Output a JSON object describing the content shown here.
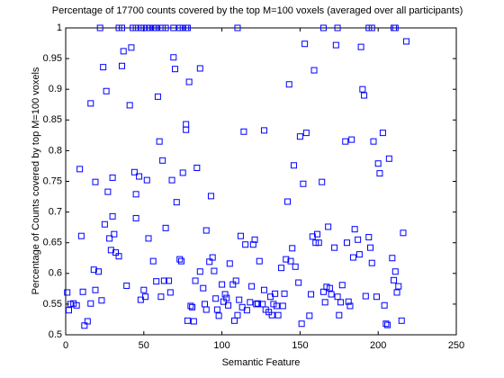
{
  "chart_data": {
    "type": "scatter",
    "title": "Percentage of 17700 counts covered by the top M=100 voxels (averaged over all participants)",
    "x_label": "Semantic Feature",
    "y_label": "Percentage of Counts covered by top M=100 voxels",
    "color": "#0000ff",
    "xlim": [
      0,
      250
    ],
    "xticks": [
      0,
      50,
      100,
      150,
      200,
      250
    ],
    "ylim": [
      0.5,
      1
    ],
    "yticks": [
      0.5,
      0.55,
      0.6,
      0.65,
      0.7,
      0.75,
      0.8,
      0.85,
      0.9,
      0.95,
      1
    ],
    "x": [
      1,
      2,
      3,
      5,
      7,
      9,
      10,
      11,
      12,
      14,
      16,
      16,
      18,
      19,
      19,
      21,
      23,
      24,
      25,
      26,
      27,
      28,
      29,
      30,
      30,
      31,
      32,
      34,
      36,
      37,
      39,
      41,
      42,
      44,
      45,
      45,
      47,
      48,
      50,
      51,
      52,
      53,
      56,
      58,
      59,
      60,
      61,
      62,
      63,
      64,
      66,
      67,
      68,
      69,
      70,
      71,
      73,
      74,
      75,
      77,
      77,
      78,
      79,
      80,
      81,
      82,
      83,
      84,
      86,
      86,
      88,
      89,
      90,
      90,
      92,
      93,
      94,
      95,
      96,
      97,
      98,
      100,
      101,
      102,
      103,
      104,
      105,
      107,
      108,
      109,
      110,
      111,
      112,
      113,
      114,
      115,
      116,
      118,
      119,
      120,
      121,
      122,
      123,
      124,
      126,
      127,
      127,
      128,
      130,
      131,
      132,
      133,
      134,
      135,
      136,
      138,
      139,
      140,
      141,
      142,
      143,
      144,
      145,
      146,
      147,
      149,
      150,
      151,
      152,
      153,
      154,
      156,
      157,
      158,
      159,
      160,
      161,
      162,
      164,
      165,
      166,
      167,
      168,
      169,
      170,
      172,
      173,
      174,
      175,
      176,
      177,
      179,
      180,
      181,
      182,
      183,
      184,
      185,
      187,
      188,
      189,
      190,
      191,
      192,
      194,
      195,
      196,
      197,
      199,
      200,
      201,
      203,
      204,
      205,
      206,
      207,
      209,
      210,
      211,
      212,
      213,
      215,
      216,
      218,
      22,
      34,
      36,
      43,
      45,
      48,
      50,
      52,
      54,
      56,
      57,
      58,
      62,
      64,
      69,
      73,
      75,
      77,
      78,
      110,
      165,
      174,
      194,
      196,
      210,
      211
    ],
    "y": [
      0.569,
      0.54,
      0.55,
      0.551,
      0.548,
      0.77,
      0.661,
      0.57,
      0.515,
      0.522,
      0.877,
      0.551,
      0.606,
      0.749,
      0.573,
      0.603,
      0.556,
      0.936,
      0.68,
      0.897,
      0.733,
      0.657,
      0.638,
      0.693,
      0.756,
      0.664,
      0.634,
      0.628,
      0.938,
      0.962,
      0.58,
      0.874,
      0.968,
      0.765,
      0.69,
      0.729,
      0.758,
      0.557,
      0.573,
      0.562,
      0.752,
      0.657,
      0.62,
      0.587,
      0.888,
      0.815,
      0.562,
      0.784,
      0.588,
      0.674,
      0.588,
      0.569,
      0.752,
      0.952,
      0.933,
      0.716,
      0.623,
      0.62,
      0.764,
      0.834,
      0.843,
      0.523,
      0.912,
      0.547,
      0.545,
      0.522,
      0.588,
      0.772,
      0.934,
      0.603,
      0.576,
      0.55,
      0.67,
      0.541,
      0.619,
      0.726,
      0.626,
      0.604,
      0.559,
      0.541,
      0.531,
      0.582,
      0.554,
      0.566,
      0.56,
      0.548,
      0.616,
      0.582,
      0.523,
      0.588,
      0.532,
      0.557,
      0.661,
      0.545,
      0.831,
      0.647,
      0.54,
      0.553,
      0.579,
      0.647,
      0.655,
      0.55,
      0.551,
      0.62,
      0.55,
      0.573,
      0.833,
      0.541,
      0.537,
      0.562,
      0.532,
      0.55,
      0.567,
      0.547,
      0.532,
      0.609,
      0.547,
      0.567,
      0.623,
      0.717,
      0.908,
      0.62,
      0.641,
      0.776,
      0.611,
      0.585,
      0.823,
      0.518,
      0.746,
      0.974,
      0.829,
      0.531,
      0.566,
      0.66,
      0.931,
      0.65,
      0.664,
      0.65,
      0.749,
      0.57,
      0.553,
      0.578,
      0.676,
      0.576,
      0.566,
      0.642,
      0.972,
      0.562,
      0.532,
      0.553,
      0.581,
      0.815,
      0.65,
      0.554,
      0.547,
      0.818,
      0.626,
      0.672,
      0.655,
      0.631,
      0.969,
      0.9,
      0.89,
      0.563,
      0.659,
      0.642,
      0.617,
      0.815,
      0.562,
      0.779,
      0.763,
      0.829,
      0.548,
      0.518,
      0.516,
      0.787,
      0.625,
      0.589,
      0.603,
      0.569,
      0.579,
      0.523,
      0.666,
      0.978,
      1,
      1,
      1,
      1,
      1,
      1,
      1,
      1,
      1,
      1,
      1,
      1,
      1,
      1,
      1,
      1,
      1,
      1,
      1,
      1,
      1,
      1,
      1,
      1,
      1,
      1
    ]
  }
}
